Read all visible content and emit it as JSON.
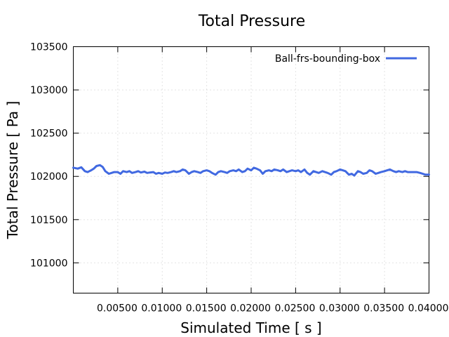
{
  "chart_data": {
    "type": "line",
    "title": "Total Pressure",
    "xlabel": "Simulated Time [ s ]",
    "ylabel": "Total Pressure [ Pa ]",
    "xlim": [
      0.0,
      0.04
    ],
    "ylim": [
      100650,
      103500
    ],
    "x_ticks": [
      0.005,
      0.01,
      0.015,
      0.02,
      0.025,
      0.03,
      0.035,
      0.04
    ],
    "x_tick_labels": [
      "0.00500",
      "0.01000",
      "0.01500",
      "0.02000",
      "0.02500",
      "0.03000",
      "0.03500",
      "0.04000"
    ],
    "y_ticks": [
      101000,
      101500,
      102000,
      102500,
      103000,
      103500
    ],
    "y_tick_labels": [
      "101000",
      "101500",
      "102000",
      "102500",
      "103000",
      "103500"
    ],
    "grid": true,
    "legend_position": "top-right",
    "series": [
      {
        "name": "Ball-frs-bounding-box",
        "color": "#4169e1",
        "x": [
          0.0,
          0.0005,
          0.0009,
          0.0013,
          0.0016,
          0.002,
          0.0023,
          0.0026,
          0.003,
          0.0033,
          0.0036,
          0.004,
          0.0043,
          0.0046,
          0.005,
          0.0053,
          0.0056,
          0.006,
          0.0063,
          0.0066,
          0.007,
          0.0073,
          0.0076,
          0.008,
          0.0083,
          0.0086,
          0.009,
          0.0093,
          0.0096,
          0.01,
          0.0103,
          0.0106,
          0.011,
          0.0113,
          0.0116,
          0.012,
          0.0123,
          0.0126,
          0.013,
          0.0133,
          0.0136,
          0.014,
          0.0143,
          0.0146,
          0.015,
          0.0153,
          0.0156,
          0.016,
          0.0163,
          0.0166,
          0.017,
          0.0173,
          0.0176,
          0.018,
          0.0183,
          0.0186,
          0.019,
          0.0193,
          0.0196,
          0.02,
          0.0203,
          0.0206,
          0.021,
          0.0213,
          0.0216,
          0.022,
          0.0223,
          0.0226,
          0.023,
          0.0233,
          0.0236,
          0.024,
          0.0243,
          0.0246,
          0.025,
          0.0253,
          0.0256,
          0.026,
          0.0263,
          0.0266,
          0.027,
          0.0273,
          0.0276,
          0.028,
          0.0283,
          0.0286,
          0.029,
          0.0293,
          0.0296,
          0.03,
          0.0303,
          0.0306,
          0.031,
          0.0313,
          0.0316,
          0.032,
          0.0323,
          0.0326,
          0.033,
          0.0333,
          0.0336,
          0.034,
          0.0343,
          0.0346,
          0.035,
          0.0353,
          0.0356,
          0.036,
          0.0363,
          0.0366,
          0.037,
          0.0373,
          0.0376,
          0.038,
          0.0383,
          0.0386,
          0.039,
          0.0393,
          0.0396,
          0.04
        ],
        "y": [
          102100,
          102090,
          102105,
          102060,
          102050,
          102070,
          102090,
          102120,
          102130,
          102110,
          102060,
          102030,
          102040,
          102050,
          102050,
          102030,
          102060,
          102050,
          102060,
          102040,
          102050,
          102060,
          102045,
          102055,
          102040,
          102045,
          102050,
          102030,
          102040,
          102030,
          102045,
          102040,
          102050,
          102060,
          102050,
          102060,
          102080,
          102070,
          102030,
          102050,
          102060,
          102050,
          102040,
          102060,
          102070,
          102060,
          102040,
          102020,
          102050,
          102060,
          102050,
          102040,
          102060,
          102070,
          102060,
          102080,
          102050,
          102060,
          102090,
          102070,
          102100,
          102090,
          102070,
          102030,
          102060,
          102070,
          102060,
          102080,
          102070,
          102060,
          102080,
          102050,
          102060,
          102070,
          102060,
          102070,
          102050,
          102080,
          102040,
          102020,
          102060,
          102050,
          102040,
          102060,
          102050,
          102040,
          102020,
          102050,
          102060,
          102080,
          102070,
          102060,
          102020,
          102030,
          102010,
          102060,
          102050,
          102030,
          102040,
          102070,
          102060,
          102030,
          102040,
          102050,
          102060,
          102070,
          102080,
          102060,
          102050,
          102060,
          102050,
          102060,
          102050,
          102050,
          102050,
          102050,
          102040,
          102030,
          102020,
          102020
        ]
      }
    ]
  }
}
